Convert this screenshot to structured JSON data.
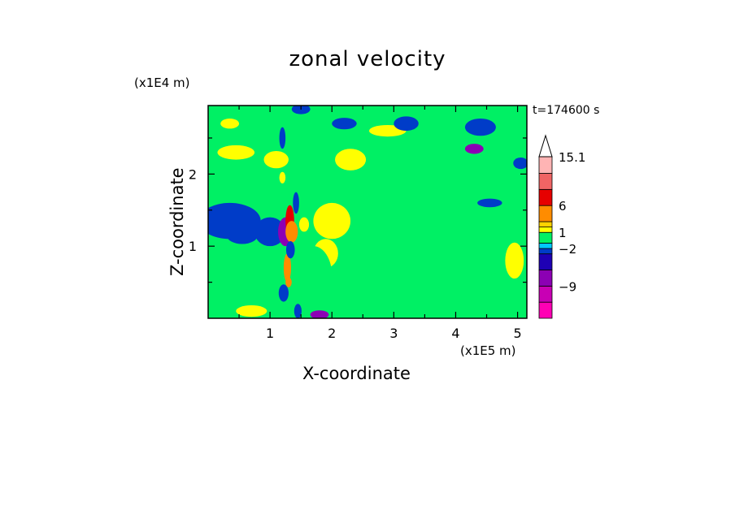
{
  "chart_data": {
    "type": "heatmap",
    "title": "zonal velocity",
    "xlabel": "X-coordinate",
    "ylabel": "Z-coordinate",
    "x_unit": "(x1E5 m)",
    "y_unit": "(x1E4 m)",
    "time_label": "t=174600 s",
    "xlim": [
      0,
      5.15
    ],
    "ylim": [
      0,
      2.95
    ],
    "x_ticks": [
      1,
      2,
      3,
      4,
      5
    ],
    "y_ticks": [
      1,
      2
    ],
    "colorbar": {
      "levels": [
        -15,
        -12,
        -9,
        -6,
        -3,
        -2,
        -1,
        1,
        2,
        3,
        6,
        9,
        12,
        15.1
      ],
      "colors": [
        "#ff00b4",
        "#c800b4",
        "#8c00b4",
        "#1e00b4",
        "#003cc8",
        "#00c8ff",
        "#00f064",
        "#ffff00",
        "#ffd200",
        "#ff8c00",
        "#e60000",
        "#f06464",
        "#ffb4b4"
      ],
      "labels": [
        {
          "value": 15.1,
          "text": "15.1"
        },
        {
          "value": 6,
          "text": "6"
        },
        {
          "value": 1,
          "text": "1"
        },
        {
          "value": -2,
          "text": "−2"
        },
        {
          "value": -9,
          "text": "−9"
        }
      ],
      "extend": "max"
    },
    "background_value": -0.4,
    "features": [
      {
        "x": 0.65,
        "z": 0.75,
        "rx": 0.5,
        "rz": 0.35,
        "value": 0.4
      },
      {
        "x": 1.0,
        "z": 0.6,
        "rx": 0.35,
        "rz": 0.25,
        "value": -0.3
      },
      {
        "x": 0.3,
        "z": 0.3,
        "rx": 0.35,
        "rz": 0.12,
        "value": 0.4
      },
      {
        "x": 0.7,
        "z": 0.25,
        "rx": 0.4,
        "rz": 0.15,
        "value": 0.5
      },
      {
        "x": 0.7,
        "z": 0.1,
        "rx": 0.25,
        "rz": 0.08,
        "value": 1.5
      },
      {
        "x": 0.7,
        "z": 1.45,
        "rx": 0.5,
        "rz": 0.15,
        "value": 0.4
      },
      {
        "x": 0.8,
        "z": 2.0,
        "rx": 0.8,
        "rz": 0.3,
        "value": 0.4
      },
      {
        "x": 0.6,
        "z": 2.6,
        "rx": 0.7,
        "rz": 0.3,
        "value": 0.4
      },
      {
        "x": 0.45,
        "z": 2.3,
        "rx": 0.3,
        "rz": 0.1,
        "value": 1.5
      },
      {
        "x": 1.1,
        "z": 2.2,
        "rx": 0.2,
        "rz": 0.12,
        "value": 1.5
      },
      {
        "x": 0.35,
        "z": 2.7,
        "rx": 0.15,
        "rz": 0.07,
        "value": 1.5
      },
      {
        "x": 0.35,
        "z": 1.35,
        "rx": 0.5,
        "rz": 0.25,
        "value": -2.5
      },
      {
        "x": 0.55,
        "z": 1.15,
        "rx": 0.25,
        "rz": 0.12,
        "value": -2.5
      },
      {
        "x": 1.0,
        "z": 1.2,
        "rx": 0.25,
        "rz": 0.2,
        "value": -2.5
      },
      {
        "x": 0.25,
        "z": 1.0,
        "rx": 0.12,
        "rz": 0.1,
        "value": -0.3
      },
      {
        "x": 2.4,
        "z": 2.35,
        "rx": 1.0,
        "rz": 0.35,
        "value": 0.4
      },
      {
        "x": 3.9,
        "z": 2.45,
        "rx": 1.0,
        "rz": 0.3,
        "value": 0.4
      },
      {
        "x": 4.3,
        "z": 2.0,
        "rx": 0.6,
        "rz": 0.2,
        "value": 0.4
      },
      {
        "x": 3.2,
        "z": 1.55,
        "rx": 0.9,
        "rz": 0.15,
        "value": 0.4
      },
      {
        "x": 4.6,
        "z": 1.5,
        "rx": 0.6,
        "rz": 0.2,
        "value": 0.4
      },
      {
        "x": 2.9,
        "z": 2.6,
        "rx": 0.3,
        "rz": 0.08,
        "value": 1.5
      },
      {
        "x": 2.3,
        "z": 2.2,
        "rx": 0.25,
        "rz": 0.15,
        "value": 1.5
      },
      {
        "x": 1.9,
        "z": 1.2,
        "rx": 0.4,
        "rz": 0.45,
        "value": 0.4
      },
      {
        "x": 2.0,
        "z": 1.35,
        "rx": 0.3,
        "rz": 0.25,
        "value": 1.5
      },
      {
        "x": 1.9,
        "z": 0.9,
        "rx": 0.2,
        "rz": 0.2,
        "value": 1.5
      },
      {
        "x": 1.7,
        "z": 0.6,
        "rx": 0.3,
        "rz": 0.4,
        "value": 0.4
      },
      {
        "x": 3.1,
        "z": 0.5,
        "rx": 0.5,
        "rz": 0.2,
        "value": 0.4
      },
      {
        "x": 2.5,
        "z": 0.3,
        "rx": 0.5,
        "rz": 0.2,
        "value": 0.4
      },
      {
        "x": 4.2,
        "z": 0.7,
        "rx": 0.5,
        "rz": 0.15,
        "value": 0.4
      },
      {
        "x": 4.8,
        "z": 0.35,
        "rx": 0.4,
        "rz": 0.3,
        "value": 0.4
      },
      {
        "x": 4.0,
        "z": 0.15,
        "rx": 0.4,
        "rz": 0.12,
        "value": 0.4
      },
      {
        "x": 4.95,
        "z": 0.8,
        "rx": 0.15,
        "rz": 0.25,
        "value": 1.5
      },
      {
        "x": 1.8,
        "z": 2.85,
        "rx": 0.5,
        "rz": 0.1,
        "value": 0.4
      },
      {
        "x": 2.2,
        "z": 2.7,
        "rx": 0.2,
        "rz": 0.08,
        "value": -2.5
      },
      {
        "x": 3.2,
        "z": 2.7,
        "rx": 0.2,
        "rz": 0.1,
        "value": -2.5
      },
      {
        "x": 4.4,
        "z": 2.65,
        "rx": 0.25,
        "rz": 0.12,
        "value": -2.5
      },
      {
        "x": 4.3,
        "z": 2.35,
        "rx": 0.15,
        "rz": 0.07,
        "value": -7
      },
      {
        "x": 5.05,
        "z": 2.15,
        "rx": 0.12,
        "rz": 0.08,
        "value": -2.5
      },
      {
        "x": 1.5,
        "z": 2.9,
        "rx": 0.15,
        "rz": 0.07,
        "value": -2.5
      },
      {
        "x": 4.55,
        "z": 1.6,
        "rx": 0.2,
        "rz": 0.06,
        "value": -2.5
      },
      {
        "x": 1.25,
        "z": 1.2,
        "rx": 0.12,
        "rz": 0.2,
        "value": -7
      },
      {
        "x": 1.32,
        "z": 1.35,
        "rx": 0.07,
        "rz": 0.22,
        "value": 8
      },
      {
        "x": 1.35,
        "z": 1.2,
        "rx": 0.1,
        "rz": 0.15,
        "value": 4
      },
      {
        "x": 1.28,
        "z": 0.7,
        "rx": 0.06,
        "rz": 0.2,
        "value": 4
      },
      {
        "x": 1.33,
        "z": 0.95,
        "rx": 0.07,
        "rz": 0.12,
        "value": -2.5
      },
      {
        "x": 1.42,
        "z": 1.6,
        "rx": 0.05,
        "rz": 0.15,
        "value": -2.5
      },
      {
        "x": 1.22,
        "z": 0.35,
        "rx": 0.08,
        "rz": 0.12,
        "value": -2.5
      },
      {
        "x": 1.2,
        "z": 2.5,
        "rx": 0.05,
        "rz": 0.15,
        "value": -2.5
      },
      {
        "x": 1.2,
        "z": 1.95,
        "rx": 0.05,
        "rz": 0.08,
        "value": 1.5
      },
      {
        "x": 1.3,
        "z": 0.5,
        "rx": 0.05,
        "rz": 0.07,
        "value": 4
      },
      {
        "x": 1.8,
        "z": 0.05,
        "rx": 0.15,
        "rz": 0.06,
        "value": -7
      },
      {
        "x": 1.45,
        "z": 0.1,
        "rx": 0.06,
        "rz": 0.1,
        "value": -2.5
      },
      {
        "x": 1.55,
        "z": 1.3,
        "rx": 0.08,
        "rz": 0.1,
        "value": 1.5
      }
    ]
  }
}
